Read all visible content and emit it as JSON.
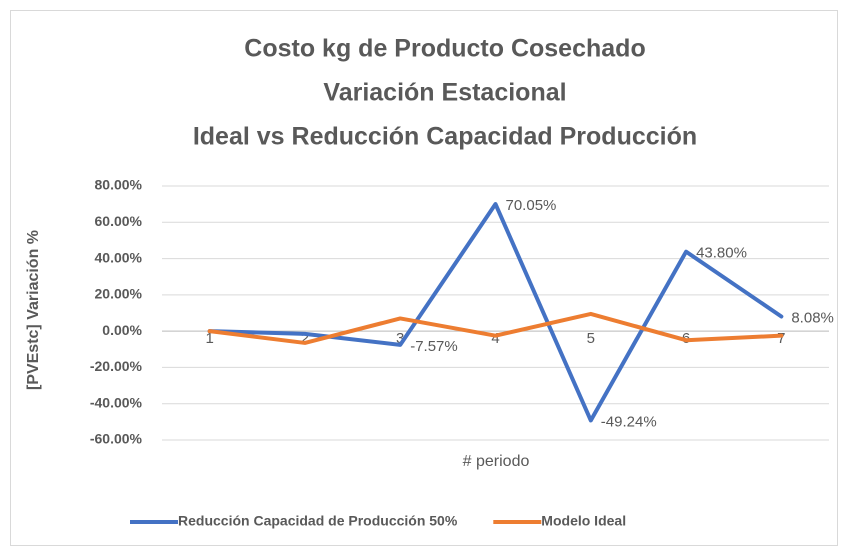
{
  "chart_data": {
    "type": "line",
    "title": [
      "Costo kg de Producto Cosechado",
      "Variación Estacional",
      "Ideal vs Reducción Capacidad Producción"
    ],
    "x_label": "# periodo",
    "y_label": "[PVEstc]    Variación %",
    "categories": [
      "1",
      "2",
      "3",
      "4",
      "5",
      "6",
      "7"
    ],
    "series": [
      {
        "name": "Reducción Capacidad de Producción 50%",
        "color": "#4472c4",
        "values": [
          0,
          -1.5,
          -7.57,
          70.05,
          -49.24,
          43.8,
          8.08
        ],
        "value_labels": [
          null,
          null,
          "-7.57%",
          "70.05%",
          "-49.24%",
          "43.80%",
          "8.08%"
        ]
      },
      {
        "name": "Modelo Ideal",
        "color": "#ed7d31",
        "values": [
          0,
          -6.5,
          7,
          -2.5,
          9.5,
          -5,
          -2.5
        ]
      }
    ],
    "ylim": [
      -60,
      80
    ],
    "yticks": [
      {
        "value": -60,
        "label": "-60.00%"
      },
      {
        "value": -40,
        "label": "-40.00%"
      },
      {
        "value": -20,
        "label": "-20.00%"
      },
      {
        "value": 0,
        "label": "0.00%"
      },
      {
        "value": 20,
        "label": "20.00%"
      },
      {
        "value": 40,
        "label": "40.00%"
      },
      {
        "value": 60,
        "label": "60.00%"
      },
      {
        "value": 80,
        "label": "80.00%"
      }
    ],
    "grid": true,
    "legend": "bottom"
  }
}
